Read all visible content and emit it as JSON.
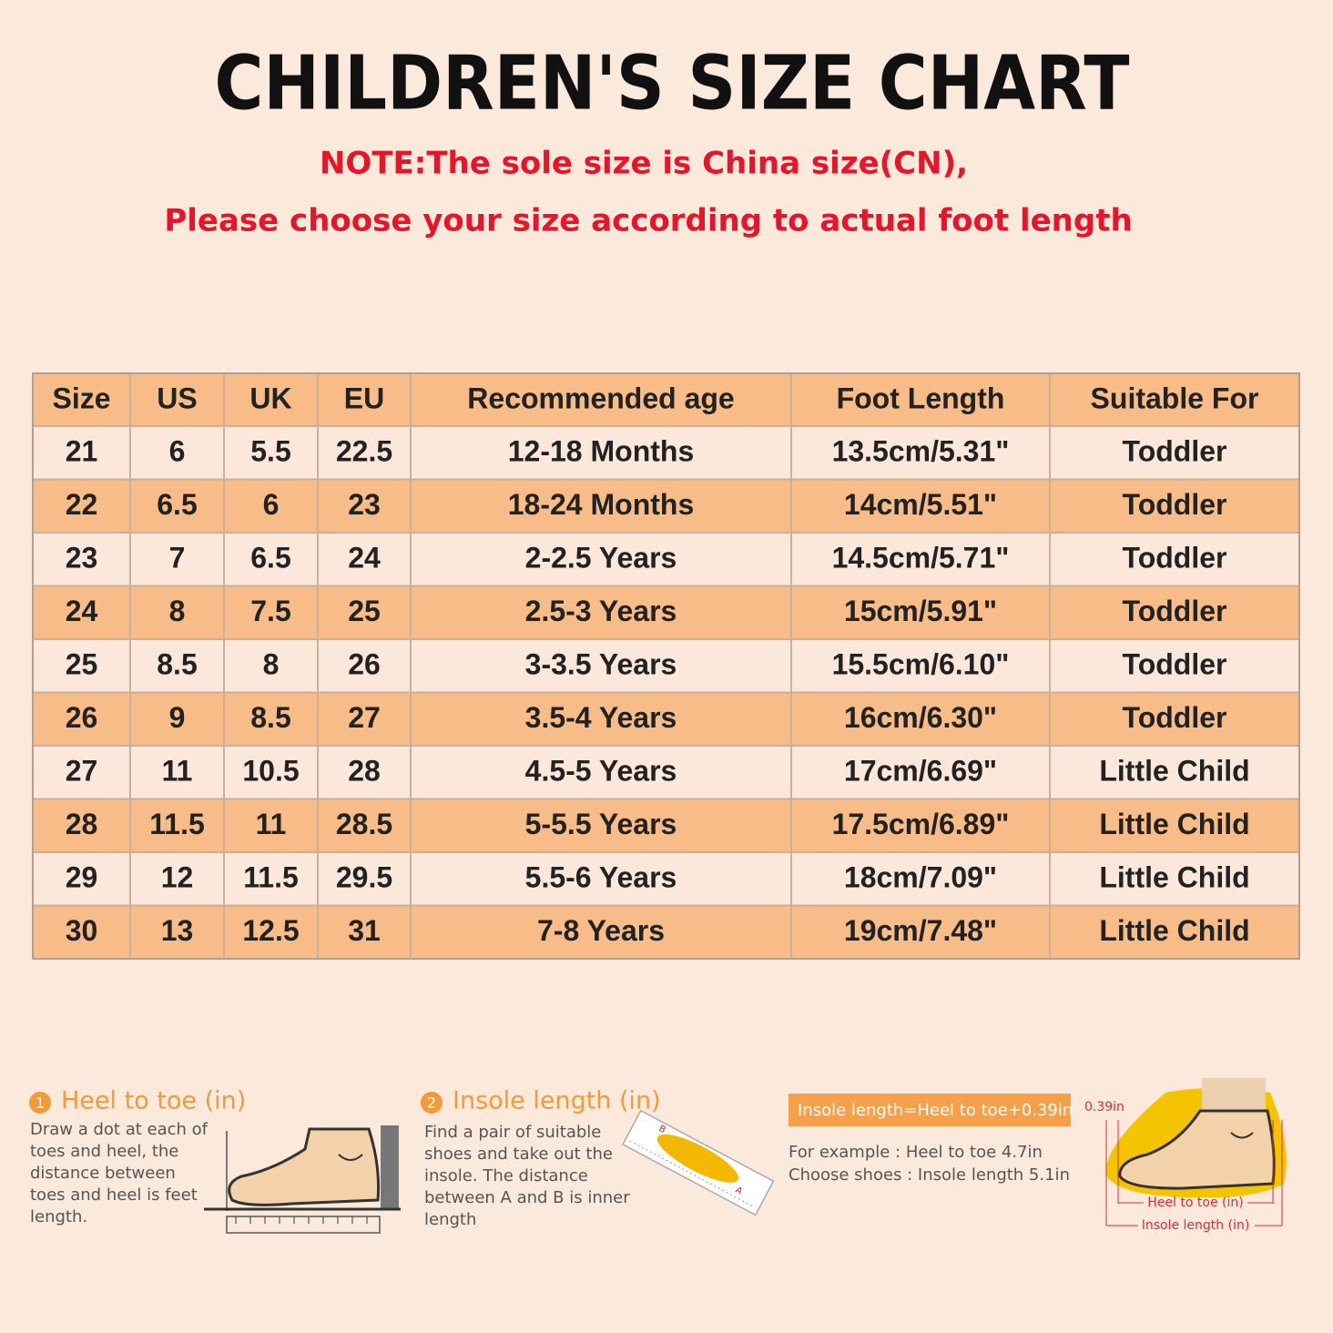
{
  "header": {
    "title": "CHILDREN'S SIZE CHART",
    "note_lines": [
      "NOTE:The sole size is China size(CN),",
      "Please choose your size according to actual foot length"
    ]
  },
  "table": {
    "columns": [
      "Size",
      "US",
      "UK",
      "EU",
      "Recommended age",
      "Foot Length",
      "Suitable For"
    ],
    "rows": [
      [
        "21",
        "6",
        "5.5",
        "22.5",
        "12-18 Months",
        "13.5cm/5.31\"",
        "Toddler"
      ],
      [
        "22",
        "6.5",
        "6",
        "23",
        "18-24 Months",
        "14cm/5.51\"",
        "Toddler"
      ],
      [
        "23",
        "7",
        "6.5",
        "24",
        "2-2.5 Years",
        "14.5cm/5.71\"",
        "Toddler"
      ],
      [
        "24",
        "8",
        "7.5",
        "25",
        "2.5-3 Years",
        "15cm/5.91\"",
        "Toddler"
      ],
      [
        "25",
        "8.5",
        "8",
        "26",
        "3-3.5 Years",
        "15.5cm/6.10\"",
        "Toddler"
      ],
      [
        "26",
        "9",
        "8.5",
        "27",
        "3.5-4 Years",
        "16cm/6.30\"",
        "Toddler"
      ],
      [
        "27",
        "11",
        "10.5",
        "28",
        "4.5-5 Years",
        "17cm/6.69\"",
        "Little Child"
      ],
      [
        "28",
        "11.5",
        "11",
        "28.5",
        "5-5.5 Years",
        "17.5cm/6.89\"",
        "Little Child"
      ],
      [
        "29",
        "12",
        "11.5",
        "29.5",
        "5.5-6 Years",
        "18cm/7.09\"",
        "Little Child"
      ],
      [
        "30",
        "13",
        "12.5",
        "31",
        "7-8 Years",
        "19cm/7.48\"",
        "Little Child"
      ]
    ]
  },
  "steps": [
    {
      "number": "1",
      "title": "Heel to toe (in)",
      "text_lines": [
        "Draw a dot at each of",
        "toes and heel, the",
        "distance between",
        "toes and heel is feet",
        "length."
      ]
    },
    {
      "number": "2",
      "title": "Insole length (in)",
      "text_lines": [
        "Find a pair of suitable",
        "shoes and take out the",
        "insole. The distance",
        "between A and B is inner",
        "length"
      ]
    }
  ],
  "diagram_labels": {
    "a": "A",
    "b": "B"
  },
  "formula": "Insole length=Heel to toe+0.39in",
  "example_lines": [
    "For example : Heel to toe  4.7in",
    "Choose shoes : Insole length 5.1in"
  ],
  "measure_labels": {
    "extra": "0.39in",
    "heel_to_toe": "Heel to toe (in)",
    "insole": "Insole length (in)"
  }
}
